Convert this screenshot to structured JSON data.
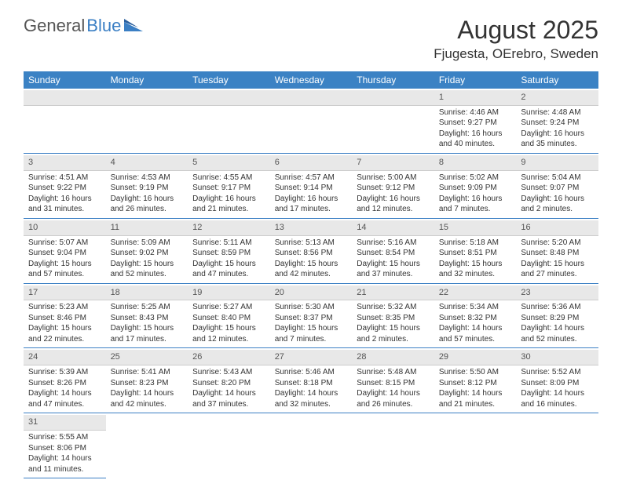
{
  "logo": {
    "text1": "General",
    "text2": "Blue"
  },
  "title": "August 2025",
  "subtitle": "Fjugesta, OErebro, Sweden",
  "colors": {
    "header_bg": "#3b82c4",
    "header_text": "#ffffff",
    "daynum_bg": "#e8e8e8",
    "cell_border": "#3b7fc4",
    "text": "#333333",
    "muted": "#555555"
  },
  "fonts": {
    "title_size": 32,
    "subtitle_size": 17,
    "header_size": 12,
    "daynum_size": 11,
    "body_size": 10
  },
  "weekdays": [
    "Sunday",
    "Monday",
    "Tuesday",
    "Wednesday",
    "Thursday",
    "Friday",
    "Saturday"
  ],
  "weeks": [
    [
      {
        "day": "",
        "lines": []
      },
      {
        "day": "",
        "lines": []
      },
      {
        "day": "",
        "lines": []
      },
      {
        "day": "",
        "lines": []
      },
      {
        "day": "",
        "lines": []
      },
      {
        "day": "1",
        "lines": [
          "Sunrise: 4:46 AM",
          "Sunset: 9:27 PM",
          "Daylight: 16 hours",
          "and 40 minutes."
        ]
      },
      {
        "day": "2",
        "lines": [
          "Sunrise: 4:48 AM",
          "Sunset: 9:24 PM",
          "Daylight: 16 hours",
          "and 35 minutes."
        ]
      }
    ],
    [
      {
        "day": "3",
        "lines": [
          "Sunrise: 4:51 AM",
          "Sunset: 9:22 PM",
          "Daylight: 16 hours",
          "and 31 minutes."
        ]
      },
      {
        "day": "4",
        "lines": [
          "Sunrise: 4:53 AM",
          "Sunset: 9:19 PM",
          "Daylight: 16 hours",
          "and 26 minutes."
        ]
      },
      {
        "day": "5",
        "lines": [
          "Sunrise: 4:55 AM",
          "Sunset: 9:17 PM",
          "Daylight: 16 hours",
          "and 21 minutes."
        ]
      },
      {
        "day": "6",
        "lines": [
          "Sunrise: 4:57 AM",
          "Sunset: 9:14 PM",
          "Daylight: 16 hours",
          "and 17 minutes."
        ]
      },
      {
        "day": "7",
        "lines": [
          "Sunrise: 5:00 AM",
          "Sunset: 9:12 PM",
          "Daylight: 16 hours",
          "and 12 minutes."
        ]
      },
      {
        "day": "8",
        "lines": [
          "Sunrise: 5:02 AM",
          "Sunset: 9:09 PM",
          "Daylight: 16 hours",
          "and 7 minutes."
        ]
      },
      {
        "day": "9",
        "lines": [
          "Sunrise: 5:04 AM",
          "Sunset: 9:07 PM",
          "Daylight: 16 hours",
          "and 2 minutes."
        ]
      }
    ],
    [
      {
        "day": "10",
        "lines": [
          "Sunrise: 5:07 AM",
          "Sunset: 9:04 PM",
          "Daylight: 15 hours",
          "and 57 minutes."
        ]
      },
      {
        "day": "11",
        "lines": [
          "Sunrise: 5:09 AM",
          "Sunset: 9:02 PM",
          "Daylight: 15 hours",
          "and 52 minutes."
        ]
      },
      {
        "day": "12",
        "lines": [
          "Sunrise: 5:11 AM",
          "Sunset: 8:59 PM",
          "Daylight: 15 hours",
          "and 47 minutes."
        ]
      },
      {
        "day": "13",
        "lines": [
          "Sunrise: 5:13 AM",
          "Sunset: 8:56 PM",
          "Daylight: 15 hours",
          "and 42 minutes."
        ]
      },
      {
        "day": "14",
        "lines": [
          "Sunrise: 5:16 AM",
          "Sunset: 8:54 PM",
          "Daylight: 15 hours",
          "and 37 minutes."
        ]
      },
      {
        "day": "15",
        "lines": [
          "Sunrise: 5:18 AM",
          "Sunset: 8:51 PM",
          "Daylight: 15 hours",
          "and 32 minutes."
        ]
      },
      {
        "day": "16",
        "lines": [
          "Sunrise: 5:20 AM",
          "Sunset: 8:48 PM",
          "Daylight: 15 hours",
          "and 27 minutes."
        ]
      }
    ],
    [
      {
        "day": "17",
        "lines": [
          "Sunrise: 5:23 AM",
          "Sunset: 8:46 PM",
          "Daylight: 15 hours",
          "and 22 minutes."
        ]
      },
      {
        "day": "18",
        "lines": [
          "Sunrise: 5:25 AM",
          "Sunset: 8:43 PM",
          "Daylight: 15 hours",
          "and 17 minutes."
        ]
      },
      {
        "day": "19",
        "lines": [
          "Sunrise: 5:27 AM",
          "Sunset: 8:40 PM",
          "Daylight: 15 hours",
          "and 12 minutes."
        ]
      },
      {
        "day": "20",
        "lines": [
          "Sunrise: 5:30 AM",
          "Sunset: 8:37 PM",
          "Daylight: 15 hours",
          "and 7 minutes."
        ]
      },
      {
        "day": "21",
        "lines": [
          "Sunrise: 5:32 AM",
          "Sunset: 8:35 PM",
          "Daylight: 15 hours",
          "and 2 minutes."
        ]
      },
      {
        "day": "22",
        "lines": [
          "Sunrise: 5:34 AM",
          "Sunset: 8:32 PM",
          "Daylight: 14 hours",
          "and 57 minutes."
        ]
      },
      {
        "day": "23",
        "lines": [
          "Sunrise: 5:36 AM",
          "Sunset: 8:29 PM",
          "Daylight: 14 hours",
          "and 52 minutes."
        ]
      }
    ],
    [
      {
        "day": "24",
        "lines": [
          "Sunrise: 5:39 AM",
          "Sunset: 8:26 PM",
          "Daylight: 14 hours",
          "and 47 minutes."
        ]
      },
      {
        "day": "25",
        "lines": [
          "Sunrise: 5:41 AM",
          "Sunset: 8:23 PM",
          "Daylight: 14 hours",
          "and 42 minutes."
        ]
      },
      {
        "day": "26",
        "lines": [
          "Sunrise: 5:43 AM",
          "Sunset: 8:20 PM",
          "Daylight: 14 hours",
          "and 37 minutes."
        ]
      },
      {
        "day": "27",
        "lines": [
          "Sunrise: 5:46 AM",
          "Sunset: 8:18 PM",
          "Daylight: 14 hours",
          "and 32 minutes."
        ]
      },
      {
        "day": "28",
        "lines": [
          "Sunrise: 5:48 AM",
          "Sunset: 8:15 PM",
          "Daylight: 14 hours",
          "and 26 minutes."
        ]
      },
      {
        "day": "29",
        "lines": [
          "Sunrise: 5:50 AM",
          "Sunset: 8:12 PM",
          "Daylight: 14 hours",
          "and 21 minutes."
        ]
      },
      {
        "day": "30",
        "lines": [
          "Sunrise: 5:52 AM",
          "Sunset: 8:09 PM",
          "Daylight: 14 hours",
          "and 16 minutes."
        ]
      }
    ],
    [
      {
        "day": "31",
        "lines": [
          "Sunrise: 5:55 AM",
          "Sunset: 8:06 PM",
          "Daylight: 14 hours",
          "and 11 minutes."
        ]
      },
      {
        "day": "",
        "lines": []
      },
      {
        "day": "",
        "lines": []
      },
      {
        "day": "",
        "lines": []
      },
      {
        "day": "",
        "lines": []
      },
      {
        "day": "",
        "lines": []
      },
      {
        "day": "",
        "lines": []
      }
    ]
  ]
}
